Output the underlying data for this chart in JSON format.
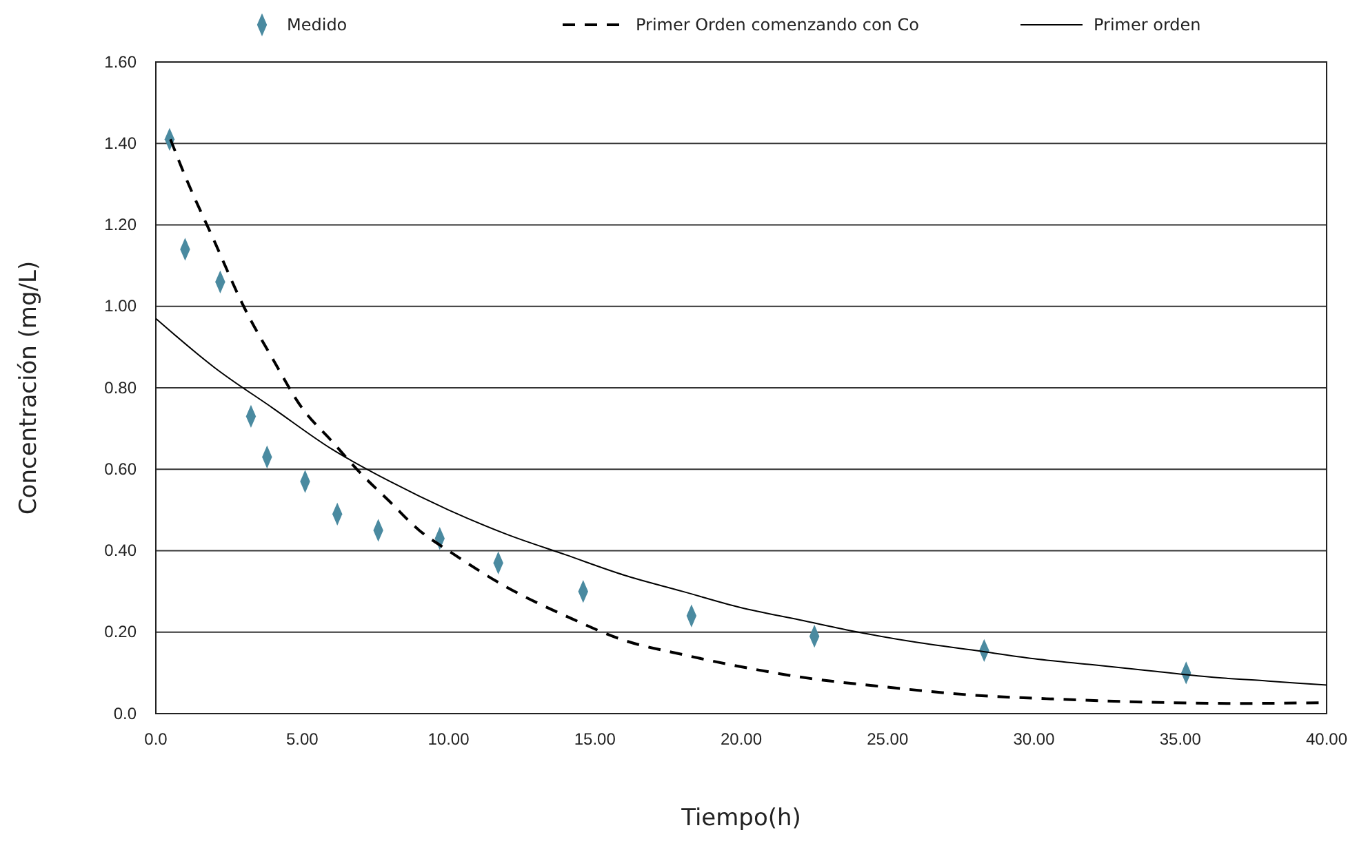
{
  "chart_data": {
    "type": "scatter",
    "xlabel": "Tiempo(h)",
    "ylabel": "Concentración (mg/L)",
    "xlim": [
      0,
      40
    ],
    "xticks": [
      {
        "value": 0,
        "label": "0.0"
      },
      {
        "value": 5,
        "label": "5.00"
      },
      {
        "value": 10,
        "label": "10.00"
      },
      {
        "value": 15,
        "label": "15.00"
      },
      {
        "value": 20,
        "label": "20.00"
      },
      {
        "value": 25,
        "label": "25.00"
      },
      {
        "value": 30,
        "label": "30.00"
      },
      {
        "value": 35,
        "label": "35.00"
      },
      {
        "value": 40,
        "label": "40.00"
      }
    ],
    "ylim": [
      0,
      1.6
    ],
    "yticks": [
      {
        "value": 0,
        "label": "0.0"
      },
      {
        "value": 0.2,
        "label": "0.20"
      },
      {
        "value": 0.4,
        "label": "0.40"
      },
      {
        "value": 0.6,
        "label": "0.60"
      },
      {
        "value": 0.8,
        "label": "0.80"
      },
      {
        "value": 1,
        "label": "1.00"
      },
      {
        "value": 1.2,
        "label": "1.20"
      },
      {
        "value": 1.4,
        "label": "1.40"
      },
      {
        "value": 1.6,
        "label": "1.60"
      }
    ],
    "grid": "y",
    "legend": "top",
    "series": [
      {
        "name": "Medido",
        "type": "scatter",
        "marker": "diamond",
        "color": "#4a8aa0",
        "x": [
          0.47,
          1.0,
          2.2,
          3.25,
          3.8,
          5.1,
          6.2,
          7.6,
          9.7,
          11.7,
          14.6,
          18.3,
          22.5,
          28.3,
          35.2
        ],
        "values": [
          1.41,
          1.14,
          1.06,
          0.73,
          0.63,
          0.57,
          0.49,
          0.45,
          0.43,
          0.37,
          0.3,
          0.24,
          0.19,
          0.155,
          0.1
        ]
      },
      {
        "name": "Primer Orden comenzando con Co",
        "type": "line",
        "marker": "none",
        "line_style": "dashed",
        "color": "#000000",
        "x": [
          0.5,
          1,
          2,
          3,
          4,
          5,
          6,
          7,
          8,
          9,
          10,
          12,
          14,
          16,
          18,
          20,
          22,
          25,
          28,
          31,
          34,
          37,
          40
        ],
        "values": [
          1.41,
          1.32,
          1.16,
          1.0,
          0.87,
          0.75,
          0.67,
          0.59,
          0.52,
          0.45,
          0.4,
          0.31,
          0.24,
          0.18,
          0.145,
          0.115,
          0.09,
          0.065,
          0.045,
          0.035,
          0.028,
          0.025,
          0.027
        ]
      },
      {
        "name": "Primer orden",
        "type": "line",
        "marker": "none",
        "line_style": "solid",
        "color": "#000000",
        "x": [
          0,
          2,
          4,
          6,
          8,
          10,
          12,
          14,
          16,
          18,
          20,
          22,
          24,
          26,
          28,
          30,
          32,
          34,
          36,
          38,
          40
        ],
        "values": [
          0.97,
          0.85,
          0.75,
          0.65,
          0.57,
          0.5,
          0.44,
          0.39,
          0.34,
          0.3,
          0.26,
          0.23,
          0.2,
          0.175,
          0.155,
          0.135,
          0.12,
          0.105,
          0.09,
          0.08,
          0.07
        ]
      }
    ]
  }
}
